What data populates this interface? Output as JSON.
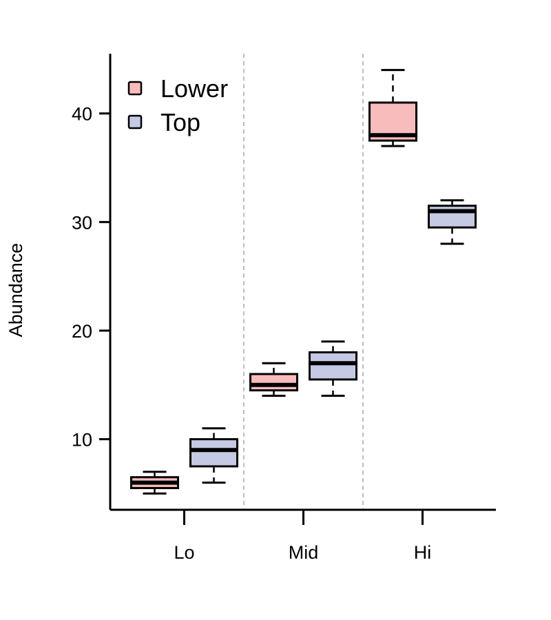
{
  "chart_data": {
    "type": "boxplot",
    "title": "",
    "ylabel": "Abundance",
    "xlabel": "",
    "categories": [
      "Lo",
      "Mid",
      "Hi"
    ],
    "ylim": [
      3.5,
      45.5
    ],
    "yticks": [
      10,
      20,
      30,
      40
    ],
    "ytick_labels": [
      "10",
      "20",
      "30",
      "40"
    ],
    "grid": false,
    "separators": "dashed vertical lines between categories",
    "legend": {
      "placement": "top-left",
      "entries": [
        "Lower",
        "Top"
      ]
    },
    "colors": {
      "Lower": "#f9bcbd",
      "Top": "#c5c9e3",
      "separator": "#bdbdbd"
    },
    "series": [
      {
        "name": "Lower",
        "boxes": [
          {
            "category": "Lo",
            "min": 5,
            "q1": 5.5,
            "median": 6,
            "q3": 6.5,
            "max": 7
          },
          {
            "category": "Mid",
            "min": 14,
            "q1": 14.5,
            "median": 15,
            "q3": 16,
            "max": 17
          },
          {
            "category": "Hi",
            "min": 37,
            "q1": 37.5,
            "median": 38,
            "q3": 41,
            "max": 44
          }
        ]
      },
      {
        "name": "Top",
        "boxes": [
          {
            "category": "Lo",
            "min": 6,
            "q1": 7.5,
            "median": 9,
            "q3": 10,
            "max": 11
          },
          {
            "category": "Mid",
            "min": 14,
            "q1": 15.5,
            "median": 17,
            "q3": 18,
            "max": 19
          },
          {
            "category": "Hi",
            "min": 28,
            "q1": 29.5,
            "median": 31,
            "q3": 31.5,
            "max": 32
          }
        ]
      }
    ]
  }
}
